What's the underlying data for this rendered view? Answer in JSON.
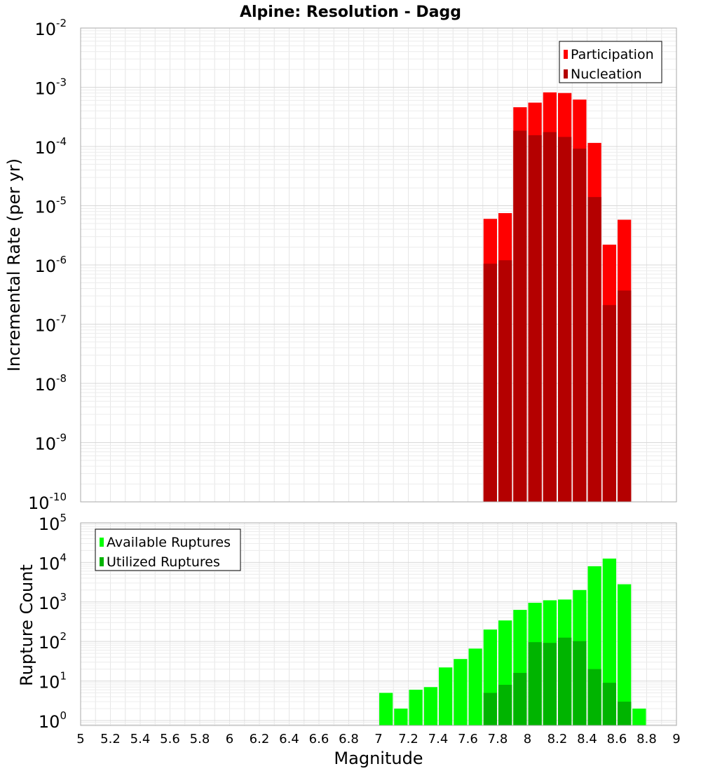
{
  "chart_data": [
    {
      "type": "bar",
      "title": "Alpine: Resolution - Dagg",
      "xlabel": "",
      "ylabel": "Incremental Rate (per yr)",
      "yscale": "log",
      "xlim": [
        5,
        9
      ],
      "ylim": [
        1e-10,
        0.01
      ],
      "y_tick_exponents": [
        -10,
        -9,
        -8,
        -7,
        -6,
        -5,
        -4,
        -3,
        -2
      ],
      "y_tick_base": "10",
      "grid": true,
      "legend_position": "top-right",
      "bar_width": 0.1,
      "colors": {
        "Participation": "#ff0000",
        "Nucleation": "#b40000"
      },
      "x": [
        7.75,
        7.85,
        7.95,
        8.05,
        8.15,
        8.25,
        8.35,
        8.45,
        8.55,
        8.65
      ],
      "series": [
        {
          "name": "Participation",
          "values": [
            6e-06,
            7.5e-06,
            0.00046,
            0.00055,
            0.00082,
            0.0008,
            0.00062,
            0.000115,
            2.2e-06,
            5.8e-06
          ]
        },
        {
          "name": "Nucleation",
          "values": [
            1.05e-06,
            1.2e-06,
            0.000185,
            0.000155,
            0.000175,
            0.000145,
            9.2e-05,
            1.4e-05,
            2.1e-07,
            3.7e-07
          ]
        }
      ]
    },
    {
      "type": "bar",
      "title": "",
      "xlabel": "Magnitude",
      "ylabel": "Rupture Count",
      "yscale": "log",
      "xlim": [
        5,
        9
      ],
      "ylim": [
        0.75,
        100000.0
      ],
      "y_tick_exponents": [
        0,
        1,
        2,
        3,
        4,
        5
      ],
      "y_tick_base": "10",
      "grid": true,
      "legend_position": "top-left",
      "bar_width": 0.1,
      "colors": {
        "Available Ruptures": "#00ff00",
        "Utilized Ruptures": "#00b400"
      },
      "x": [
        7.05,
        7.15,
        7.25,
        7.35,
        7.45,
        7.55,
        7.65,
        7.75,
        7.85,
        7.95,
        8.05,
        8.15,
        8.25,
        8.35,
        8.45,
        8.55,
        8.65,
        8.75
      ],
      "x_tick_labels": [
        "5",
        "5.2",
        "5.4",
        "5.6",
        "5.8",
        "6",
        "6.2",
        "6.4",
        "6.6",
        "6.8",
        "7",
        "7.2",
        "7.4",
        "7.6",
        "7.8",
        "8",
        "8.2",
        "8.4",
        "8.6",
        "8.8",
        "9"
      ],
      "series": [
        {
          "name": "Available Ruptures",
          "values": [
            5,
            2,
            6,
            7,
            22,
            36,
            66,
            200,
            340,
            630,
            950,
            1100,
            1150,
            2000,
            8000,
            12500,
            2800,
            2
          ]
        },
        {
          "name": "Utilized Ruptures",
          "values": [
            0,
            0,
            0,
            0,
            0,
            0,
            0,
            5,
            8,
            16,
            96,
            92,
            125,
            102,
            20,
            9,
            3,
            0
          ]
        }
      ]
    }
  ]
}
